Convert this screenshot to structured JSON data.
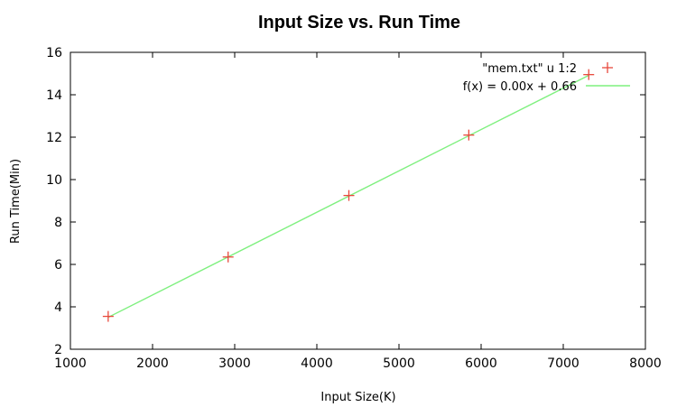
{
  "chart_data": {
    "type": "scatter",
    "title": "Input Size vs. Run Time",
    "xlabel": "Input Size(K)",
    "ylabel": "Run Time(Min)",
    "xlim": [
      1000,
      8000
    ],
    "ylim": [
      2,
      16
    ],
    "xticks": [
      1000,
      2000,
      3000,
      4000,
      5000,
      6000,
      7000,
      8000
    ],
    "yticks": [
      2,
      4,
      6,
      8,
      10,
      12,
      14,
      16
    ],
    "grid": false,
    "legend_position": "top-right",
    "series": [
      {
        "name": "\"mem.txt\" u 1:2",
        "kind": "points",
        "marker": "plus",
        "color": "#e8483c",
        "x": [
          1460,
          2920,
          4390,
          5850,
          7310
        ],
        "y": [
          3.55,
          6.35,
          9.25,
          12.1,
          14.95
        ]
      },
      {
        "name": "f(x) =  0.00x + 0.66",
        "kind": "line",
        "color": "#7ff07f",
        "slope": 0.00195,
        "intercept": 0.66,
        "x_range": [
          1460,
          7310
        ]
      }
    ]
  }
}
